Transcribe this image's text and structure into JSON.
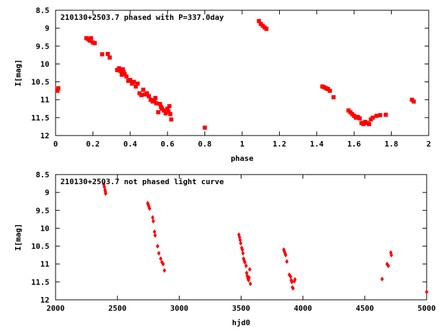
{
  "chart_data": [
    {
      "type": "scatter",
      "title": "210130+2503.7 phased with P=337.0day",
      "xlabel": "phase",
      "ylabel": "I[mag]",
      "xlim": [
        0,
        2
      ],
      "ylim": [
        8.5,
        12
      ],
      "y_inverted": true,
      "grid": false,
      "marker": "filled-square",
      "color": "#ff0000",
      "x_ticks": [
        0,
        0.2,
        0.4,
        0.6,
        0.8,
        1,
        1.2,
        1.4,
        1.6,
        1.8,
        2
      ],
      "x_tick_labels": [
        "0",
        "0.2",
        "0.4",
        "0.6",
        "0.8",
        "1",
        "1.2",
        "1.4",
        "1.6",
        "1.8",
        "2"
      ],
      "y_ticks": [
        8.5,
        9,
        9.5,
        10,
        10.5,
        11,
        11.5,
        12
      ],
      "y_tick_labels": [
        "8.5",
        "9",
        "9.5",
        "10",
        "10.5",
        "11",
        "11.5",
        "12"
      ],
      "x": [
        0.01,
        0.015,
        0.165,
        0.175,
        0.18,
        0.185,
        0.19,
        0.2,
        0.21,
        0.25,
        0.28,
        0.29,
        0.33,
        0.34,
        0.345,
        0.35,
        0.355,
        0.36,
        0.365,
        0.37,
        0.38,
        0.39,
        0.4,
        0.41,
        0.42,
        0.43,
        0.44,
        0.45,
        0.46,
        0.47,
        0.48,
        0.49,
        0.5,
        0.51,
        0.52,
        0.53,
        0.535,
        0.54,
        0.55,
        0.56,
        0.565,
        0.57,
        0.58,
        0.59,
        0.6,
        0.605,
        0.61,
        0.615,
        0.62,
        0.8,
        1.09,
        1.1,
        1.11,
        1.12,
        1.13,
        1.43,
        1.44,
        1.45,
        1.46,
        1.47,
        1.49,
        1.57,
        1.58,
        1.59,
        1.6,
        1.61,
        1.62,
        1.63,
        1.64,
        1.65,
        1.66,
        1.67,
        1.68,
        1.69,
        1.7,
        1.72,
        1.74,
        1.77,
        1.91,
        1.92
      ],
      "y": [
        10.75,
        10.68,
        9.28,
        9.3,
        9.32,
        9.35,
        9.28,
        9.4,
        9.42,
        9.73,
        9.72,
        9.82,
        10.17,
        10.12,
        10.18,
        10.2,
        10.3,
        10.15,
        10.22,
        10.28,
        10.35,
        10.47,
        10.45,
        10.55,
        10.5,
        10.63,
        10.55,
        10.82,
        10.87,
        10.72,
        10.85,
        10.82,
        10.9,
        11.0,
        11.05,
        11.02,
        10.95,
        11.1,
        11.35,
        11.12,
        11.2,
        11.25,
        11.3,
        11.38,
        11.25,
        11.33,
        11.18,
        11.4,
        11.55,
        11.78,
        8.8,
        8.88,
        8.93,
        8.98,
        9.02,
        10.63,
        10.65,
        10.68,
        10.7,
        10.75,
        10.93,
        11.3,
        11.35,
        11.4,
        11.45,
        11.5,
        11.48,
        11.52,
        11.65,
        11.68,
        11.62,
        11.65,
        11.68,
        11.55,
        11.5,
        11.45,
        11.43,
        11.42,
        11.0,
        11.05
      ]
    },
    {
      "type": "scatter",
      "title": "210130+2503.7 not phased light curve",
      "xlabel": "hjd0",
      "ylabel": "I[mag]",
      "xlim": [
        2000,
        5000
      ],
      "ylim": [
        8.5,
        12
      ],
      "y_inverted": true,
      "grid": false,
      "marker": "filled-diamond",
      "color": "#ff0000",
      "x_ticks": [
        2000,
        2500,
        3000,
        3500,
        4000,
        4500,
        5000
      ],
      "x_tick_labels": [
        "2000",
        "2500",
        "3000",
        "3500",
        "4000",
        "4500",
        "5000"
      ],
      "y_ticks": [
        8.5,
        9,
        9.5,
        10,
        10.5,
        11,
        11.5,
        12
      ],
      "y_tick_labels": [
        "8.5",
        "9",
        "9.5",
        "10",
        "10.5",
        "11",
        "11.5",
        "12"
      ],
      "x": [
        2390,
        2395,
        2400,
        2403,
        2405,
        2745,
        2750,
        2755,
        2760,
        2785,
        2790,
        2800,
        2805,
        2825,
        2835,
        2850,
        2860,
        2870,
        2880,
        3482,
        3487,
        3492,
        3497,
        3505,
        3510,
        3515,
        3520,
        3525,
        3530,
        3540,
        3545,
        3550,
        3555,
        3560,
        3565,
        3570,
        3575,
        3845,
        3850,
        3855,
        3860,
        3870,
        3890,
        3900,
        3905,
        3910,
        3915,
        3920,
        3930,
        3935,
        4640,
        4680,
        4690,
        4710,
        4715,
        5000
      ],
      "y": [
        8.78,
        8.85,
        8.93,
        8.98,
        9.03,
        9.3,
        9.35,
        9.4,
        9.45,
        9.7,
        9.8,
        10.1,
        10.2,
        10.5,
        10.7,
        10.85,
        10.95,
        11.0,
        11.18,
        10.18,
        10.25,
        10.33,
        10.42,
        10.55,
        10.6,
        10.7,
        10.85,
        10.9,
        10.95,
        11.05,
        11.25,
        11.33,
        11.4,
        11.45,
        11.38,
        11.15,
        11.55,
        10.6,
        10.65,
        10.7,
        10.75,
        10.93,
        11.3,
        11.35,
        11.45,
        11.5,
        11.65,
        11.68,
        11.48,
        11.43,
        11.42,
        11.0,
        11.05,
        10.68,
        10.75,
        11.78
      ]
    }
  ]
}
